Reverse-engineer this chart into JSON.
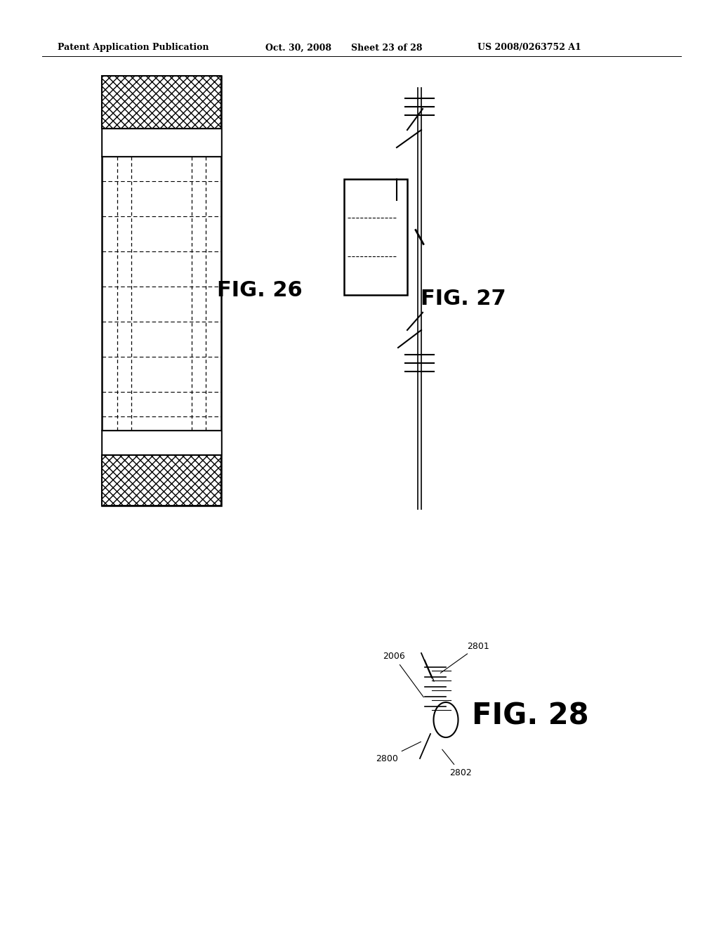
{
  "bg_color": "#ffffff",
  "header_text": "Patent Application Publication",
  "header_date": "Oct. 30, 2008",
  "header_sheet": "Sheet 23 of 28",
  "header_patent": "US 2008/0263752 A1",
  "fig26_label": "FIG. 26",
  "fig27_label": "FIG. 27",
  "fig28_label": "FIG. 28",
  "fig28_labels": [
    "2006",
    "2801",
    "2800",
    "2802"
  ]
}
